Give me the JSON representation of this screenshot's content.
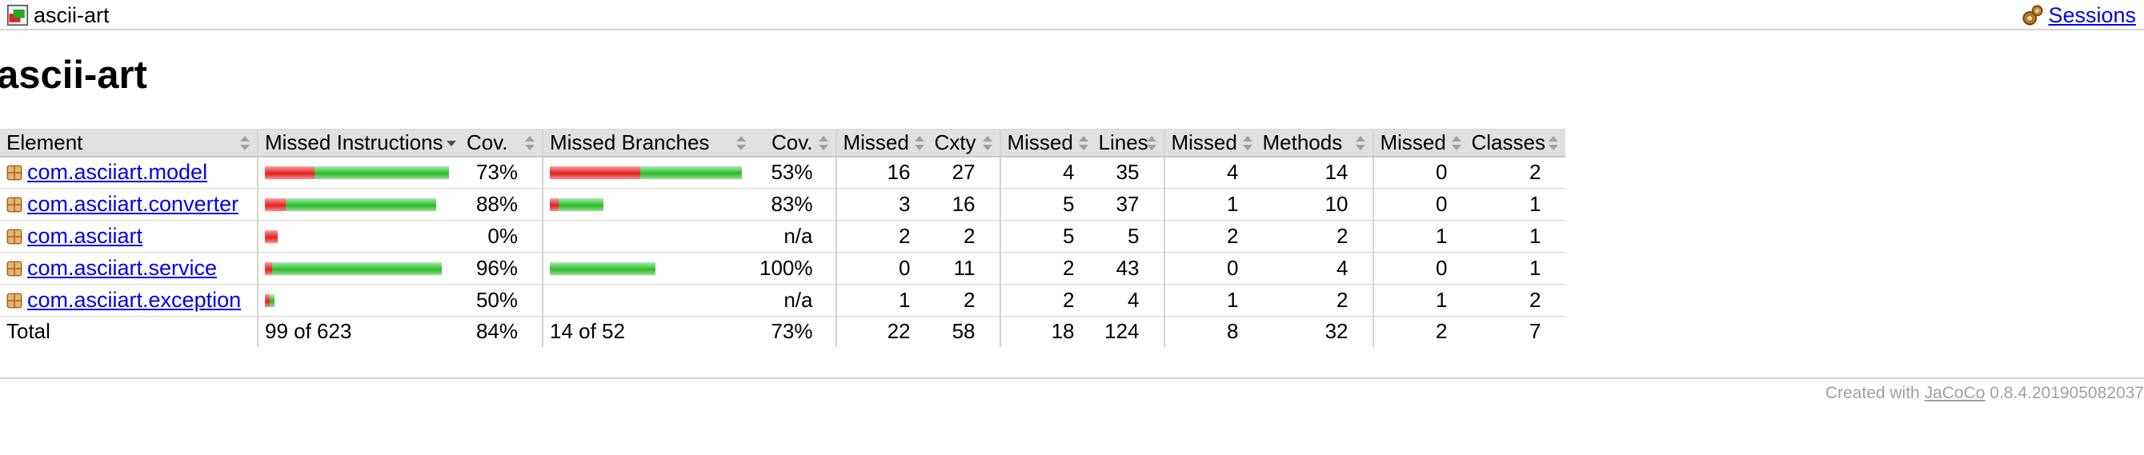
{
  "breadcrumb": {
    "title": "ascii-art",
    "sessions_label": "Sessions"
  },
  "page_title": "ascii-art",
  "table": {
    "headers": [
      "Element",
      "Missed Instructions",
      "Cov.",
      "Missed Branches",
      "Cov.",
      "Missed",
      "Cxty",
      "Missed",
      "Lines",
      "Missed",
      "Methods",
      "Missed",
      "Classes"
    ],
    "sorted_column": "Missed Instructions",
    "rows": [
      {
        "name": "com.asciiart.model",
        "instr_missed_fraction": 0.27,
        "instr_cov": "73%",
        "branch_missed_fraction": 0.47,
        "branch_cov": "53%",
        "cxty_missed": "16",
        "cxty": "27",
        "lines_missed": "4",
        "lines": "35",
        "methods_missed": "4",
        "methods": "14",
        "classes_missed": "0",
        "classes": "2"
      },
      {
        "name": "com.asciiart.converter",
        "instr_missed_fraction": 0.12,
        "instr_cov": "88%",
        "branch_missed_fraction": 0.17,
        "branch_cov": "83%",
        "cxty_missed": "3",
        "cxty": "16",
        "lines_missed": "5",
        "lines": "37",
        "methods_missed": "1",
        "methods": "10",
        "classes_missed": "0",
        "classes": "1"
      },
      {
        "name": "com.asciiart",
        "instr_missed_fraction": 1.0,
        "instr_cov": "0%",
        "branch_missed_fraction": null,
        "branch_cov": "n/a",
        "cxty_missed": "2",
        "cxty": "2",
        "lines_missed": "5",
        "lines": "5",
        "methods_missed": "2",
        "methods": "2",
        "classes_missed": "1",
        "classes": "1"
      },
      {
        "name": "com.asciiart.service",
        "instr_missed_fraction": 0.04,
        "instr_cov": "96%",
        "branch_missed_fraction": 0.0,
        "branch_cov": "100%",
        "cxty_missed": "0",
        "cxty": "11",
        "lines_missed": "2",
        "lines": "43",
        "methods_missed": "0",
        "methods": "4",
        "classes_missed": "0",
        "classes": "1"
      },
      {
        "name": "com.asciiart.exception",
        "instr_missed_fraction": 0.5,
        "instr_cov": "50%",
        "branch_missed_fraction": null,
        "branch_cov": "n/a",
        "cxty_missed": "1",
        "cxty": "2",
        "lines_missed": "2",
        "lines": "4",
        "methods_missed": "1",
        "methods": "2",
        "classes_missed": "1",
        "classes": "2"
      }
    ],
    "total": {
      "label": "Total",
      "instr": "99 of 623",
      "instr_cov": "84%",
      "branch": "14 of 52",
      "branch_cov": "73%",
      "cxty_missed": "22",
      "cxty": "58",
      "lines_missed": "18",
      "lines": "124",
      "methods_missed": "8",
      "methods": "32",
      "classes_missed": "2",
      "classes": "7"
    }
  },
  "footer": {
    "prefix": "Created with",
    "link": "JaCoCo",
    "version": "0.8.4.201905082037"
  },
  "colors": {
    "missed": "#e02222",
    "covered": "#2eb82e",
    "link": "#0000ee",
    "header_bg": "#e0e0e0"
  }
}
